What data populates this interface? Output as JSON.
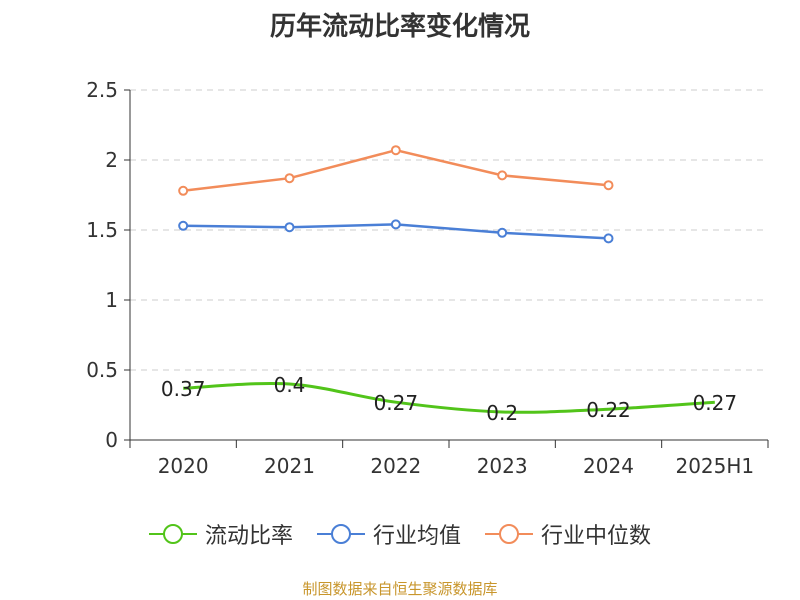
{
  "title": "历年流动比率变化情况",
  "footer": "制图数据来自恒生聚源数据库",
  "chart_data": {
    "type": "line",
    "title": "历年流动比率变化情况",
    "categories": [
      "2020",
      "2021",
      "2022",
      "2023",
      "2024",
      "2025H1"
    ],
    "y_ticks": [
      "0",
      "0.5",
      "1",
      "1.5",
      "2",
      "2.5"
    ],
    "ylim": [
      0,
      2.5
    ],
    "grid": true,
    "legend_position": "bottom",
    "series": [
      {
        "name": "流动比率",
        "color": "#52c41a",
        "values": [
          0.37,
          0.4,
          0.27,
          0.2,
          0.22,
          0.27
        ],
        "labels": [
          "0.37",
          "0.4",
          "0.27",
          "0.2",
          "0.22",
          "0.27"
        ]
      },
      {
        "name": "行业均值",
        "color": "#4a7fd6",
        "values": [
          1.53,
          1.52,
          1.54,
          1.48,
          1.44,
          null
        ]
      },
      {
        "name": "行业中位数",
        "color": "#f28c5a",
        "values": [
          1.78,
          1.87,
          2.07,
          1.89,
          1.82,
          null
        ]
      }
    ]
  }
}
